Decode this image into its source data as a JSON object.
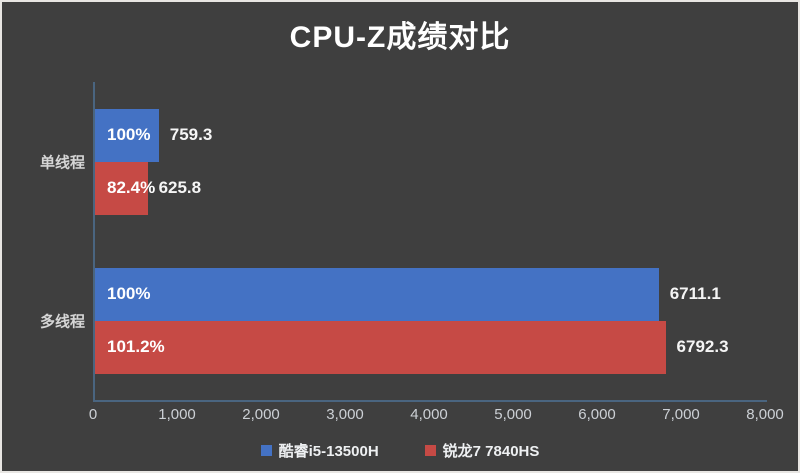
{
  "title": "CPU-Z成绩对比",
  "colors": {
    "background": "#3f3f3f",
    "axis_line": "#4a6580",
    "series_blue": "#4472c4",
    "series_red": "#c64a45",
    "tick_text": "#ccd0d5",
    "label_text": "#ffffff"
  },
  "chart_data": {
    "type": "bar",
    "orientation": "horizontal",
    "title": "CPU-Z成绩对比",
    "categories": [
      "单线程",
      "多线程"
    ],
    "series": [
      {
        "name": "酷睿i5-13500H",
        "color": "#4472c4",
        "values": [
          759.3,
          6711.1
        ],
        "percent_labels": [
          "100%",
          "100%"
        ],
        "value_labels": [
          "759.3",
          "6711.1"
        ]
      },
      {
        "name": "锐龙7 7840HS",
        "color": "#c64a45",
        "values": [
          625.8,
          6792.3
        ],
        "percent_labels": [
          "82.4%",
          "101.2%"
        ],
        "value_labels": [
          "625.8",
          "6792.3"
        ]
      }
    ],
    "xlim": [
      0,
      8000
    ],
    "x_ticks": [
      "0",
      "1,000",
      "2,000",
      "3,000",
      "4,000",
      "5,000",
      "6,000",
      "7,000",
      "8,000"
    ],
    "grid": false,
    "legend_position": "bottom"
  }
}
